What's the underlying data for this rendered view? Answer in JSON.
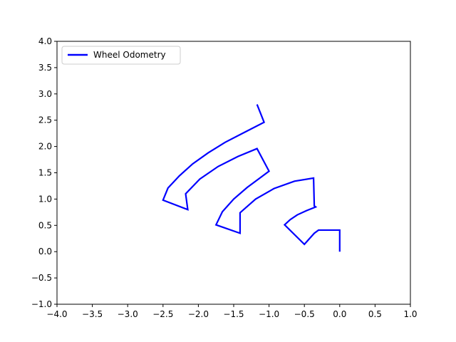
{
  "chart_data": {
    "type": "line",
    "title": "",
    "xlabel": "",
    "ylabel": "",
    "xlim": [
      -4.0,
      1.0
    ],
    "ylim": [
      -1.0,
      4.0
    ],
    "xticks": [
      -4.0,
      -3.5,
      -3.0,
      -2.5,
      -2.0,
      -1.5,
      -1.0,
      -0.5,
      0.0,
      0.5,
      1.0
    ],
    "yticks": [
      -1.0,
      -0.5,
      0.0,
      0.5,
      1.0,
      1.5,
      2.0,
      2.5,
      3.0,
      3.5,
      4.0
    ],
    "xtick_labels": [
      "−4.0",
      "−3.5",
      "−3.0",
      "−2.5",
      "−2.0",
      "−1.5",
      "−1.0",
      "−0.5",
      "0.0",
      "0.5",
      "1.0"
    ],
    "ytick_labels": [
      "−1.0",
      "−0.5",
      "0.0",
      "0.5",
      "1.0",
      "1.5",
      "2.0",
      "2.5",
      "3.0",
      "3.5",
      "4.0"
    ],
    "grid": false,
    "legend": {
      "placement": "top-left",
      "label": "Wheel Odometry"
    },
    "series": [
      {
        "name": "Wheel Odometry",
        "color": "#0000ff",
        "x": [
          0.0,
          0.0,
          -0.3,
          -0.36,
          -0.5,
          -0.78,
          -0.7,
          -0.6,
          -0.47,
          -0.34,
          -0.36,
          -0.37,
          -0.64,
          -0.93,
          -1.19,
          -1.41,
          -1.41,
          -1.75,
          -1.66,
          -1.5,
          -1.31,
          -1.13,
          -1.0,
          -1.17,
          -1.44,
          -1.72,
          -1.98,
          -2.18,
          -2.15,
          -2.5,
          -2.43,
          -2.27,
          -2.08,
          -1.86,
          -1.62,
          -1.36,
          -1.07,
          -1.17
        ],
        "y": [
          0.0,
          0.41,
          0.41,
          0.35,
          0.14,
          0.51,
          0.61,
          0.7,
          0.78,
          0.85,
          0.87,
          1.4,
          1.34,
          1.2,
          1.0,
          0.74,
          0.35,
          0.51,
          0.76,
          1.0,
          1.22,
          1.4,
          1.53,
          1.96,
          1.81,
          1.62,
          1.38,
          1.1,
          0.8,
          0.98,
          1.21,
          1.44,
          1.67,
          1.88,
          2.08,
          2.26,
          2.46,
          2.8
        ]
      }
    ]
  }
}
